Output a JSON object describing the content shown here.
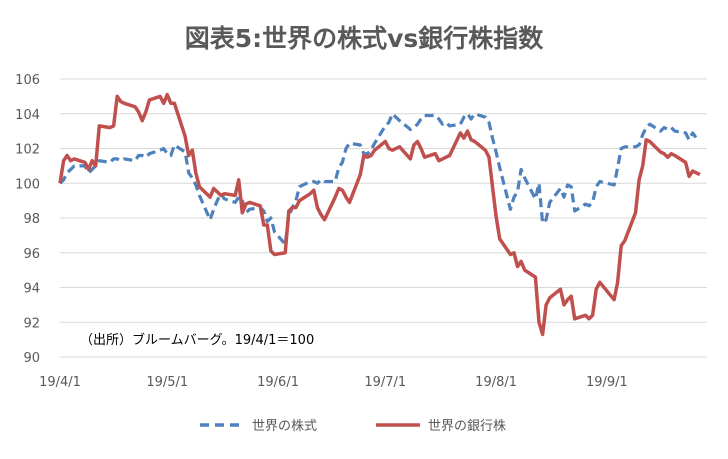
{
  "chart_data": {
    "type": "line",
    "title": "図表5:世界の株式vs銀行株指数",
    "xlabel": "",
    "ylabel": "",
    "ylim": [
      90,
      106
    ],
    "y_ticks": [
      "90",
      "92",
      "94",
      "96",
      "98",
      "100",
      "102",
      "104",
      "106"
    ],
    "x_ticks": [
      "19/4/1",
      "19/5/1",
      "19/6/1",
      "19/7/1",
      "19/8/1",
      "19/9/1"
    ],
    "grid": "horizontal",
    "legend_position": "bottom",
    "annotation": "（出所）ブルームバーグ。19/4/1＝100",
    "series": [
      {
        "name": "世界の株式",
        "style": "dashed",
        "color": "#4f81bd",
        "points": [
          [
            "2019-04-01",
            100.0
          ],
          [
            "2019-04-02",
            100.2
          ],
          [
            "2019-04-03",
            100.6
          ],
          [
            "2019-04-04",
            100.8
          ],
          [
            "2019-04-05",
            101.0
          ],
          [
            "2019-04-08",
            101.0
          ],
          [
            "2019-04-09",
            100.6
          ],
          [
            "2019-04-10",
            100.8
          ],
          [
            "2019-04-11",
            101.0
          ],
          [
            "2019-04-12",
            101.3
          ],
          [
            "2019-04-15",
            101.2
          ],
          [
            "2019-04-16",
            101.4
          ],
          [
            "2019-04-17",
            101.4
          ],
          [
            "2019-04-18",
            101.3
          ],
          [
            "2019-04-19",
            101.4
          ],
          [
            "2019-04-22",
            101.3
          ],
          [
            "2019-04-23",
            101.6
          ],
          [
            "2019-04-24",
            101.6
          ],
          [
            "2019-04-25",
            101.5
          ],
          [
            "2019-04-26",
            101.7
          ],
          [
            "2019-04-29",
            101.9
          ],
          [
            "2019-04-30",
            102.0
          ],
          [
            "2019-05-01",
            101.7
          ],
          [
            "2019-05-02",
            101.6
          ],
          [
            "2019-05-03",
            102.2
          ],
          [
            "2019-05-06",
            101.8
          ],
          [
            "2019-05-07",
            100.6
          ],
          [
            "2019-05-08",
            100.3
          ],
          [
            "2019-05-09",
            99.9
          ],
          [
            "2019-05-10",
            99.3
          ],
          [
            "2019-05-13",
            97.9
          ],
          [
            "2019-05-14",
            98.5
          ],
          [
            "2019-05-15",
            99.0
          ],
          [
            "2019-05-16",
            99.4
          ],
          [
            "2019-05-17",
            99.1
          ],
          [
            "2019-05-20",
            98.9
          ],
          [
            "2019-05-21",
            99.2
          ],
          [
            "2019-05-22",
            99.0
          ],
          [
            "2019-05-23",
            98.3
          ],
          [
            "2019-05-24",
            98.5
          ],
          [
            "2019-05-27",
            98.6
          ],
          [
            "2019-05-28",
            98.4
          ],
          [
            "2019-05-29",
            97.8
          ],
          [
            "2019-05-30",
            98.0
          ],
          [
            "2019-05-31",
            97.2
          ],
          [
            "2019-06-03",
            96.5
          ],
          [
            "2019-06-04",
            98.1
          ],
          [
            "2019-06-05",
            98.6
          ],
          [
            "2019-06-06",
            99.0
          ],
          [
            "2019-06-07",
            99.8
          ],
          [
            "2019-06-10",
            100.1
          ],
          [
            "2019-06-11",
            100.1
          ],
          [
            "2019-06-12",
            100.0
          ],
          [
            "2019-06-13",
            100.2
          ],
          [
            "2019-06-14",
            100.1
          ],
          [
            "2019-06-17",
            100.1
          ],
          [
            "2019-06-18",
            100.9
          ],
          [
            "2019-06-19",
            101.2
          ],
          [
            "2019-06-20",
            102.0
          ],
          [
            "2019-06-21",
            102.3
          ],
          [
            "2019-06-24",
            102.2
          ],
          [
            "2019-06-25",
            101.7
          ],
          [
            "2019-06-26",
            101.7
          ],
          [
            "2019-06-27",
            101.9
          ],
          [
            "2019-06-28",
            102.3
          ],
          [
            "2019-07-01",
            103.3
          ],
          [
            "2019-07-02",
            103.5
          ],
          [
            "2019-07-03",
            104.0
          ],
          [
            "2019-07-05",
            103.6
          ],
          [
            "2019-07-08",
            103.1
          ],
          [
            "2019-07-09",
            103.2
          ],
          [
            "2019-07-10",
            103.4
          ],
          [
            "2019-07-11",
            103.7
          ],
          [
            "2019-07-12",
            103.9
          ],
          [
            "2019-07-15",
            103.9
          ],
          [
            "2019-07-16",
            103.7
          ],
          [
            "2019-07-17",
            103.4
          ],
          [
            "2019-07-18",
            103.5
          ],
          [
            "2019-07-19",
            103.3
          ],
          [
            "2019-07-22",
            103.4
          ],
          [
            "2019-07-23",
            103.8
          ],
          [
            "2019-07-24",
            104.0
          ],
          [
            "2019-07-25",
            103.7
          ],
          [
            "2019-07-26",
            104.0
          ],
          [
            "2019-07-29",
            103.8
          ],
          [
            "2019-07-30",
            103.5
          ],
          [
            "2019-07-31",
            102.6
          ],
          [
            "2019-08-01",
            101.8
          ],
          [
            "2019-08-02",
            100.9
          ],
          [
            "2019-08-05",
            98.5
          ],
          [
            "2019-08-06",
            99.2
          ],
          [
            "2019-08-07",
            99.5
          ],
          [
            "2019-08-08",
            100.8
          ],
          [
            "2019-08-09",
            100.3
          ],
          [
            "2019-08-12",
            99.1
          ],
          [
            "2019-08-13",
            100.0
          ],
          [
            "2019-08-14",
            97.7
          ],
          [
            "2019-08-15",
            97.9
          ],
          [
            "2019-08-16",
            98.9
          ],
          [
            "2019-08-19",
            99.7
          ],
          [
            "2019-08-20",
            99.2
          ],
          [
            "2019-08-21",
            99.9
          ],
          [
            "2019-08-22",
            99.8
          ],
          [
            "2019-08-23",
            98.4
          ],
          [
            "2019-08-26",
            98.8
          ],
          [
            "2019-08-27",
            98.7
          ],
          [
            "2019-08-28",
            98.9
          ],
          [
            "2019-08-29",
            99.8
          ],
          [
            "2019-08-30",
            100.1
          ],
          [
            "2019-09-03",
            99.9
          ],
          [
            "2019-09-04",
            100.9
          ],
          [
            "2019-09-05",
            102.0
          ],
          [
            "2019-09-06",
            102.1
          ],
          [
            "2019-09-09",
            102.1
          ],
          [
            "2019-09-10",
            102.2
          ],
          [
            "2019-09-11",
            102.8
          ],
          [
            "2019-09-12",
            103.2
          ],
          [
            "2019-09-13",
            103.4
          ],
          [
            "2019-09-16",
            103.0
          ],
          [
            "2019-09-17",
            103.2
          ],
          [
            "2019-09-18",
            103.1
          ],
          [
            "2019-09-19",
            103.2
          ],
          [
            "2019-09-20",
            103.0
          ],
          [
            "2019-09-23",
            102.9
          ],
          [
            "2019-09-24",
            102.5
          ],
          [
            "2019-09-25",
            102.9
          ],
          [
            "2019-09-26",
            102.6
          ],
          [
            "2019-09-27",
            102.5
          ]
        ]
      },
      {
        "name": "世界の銀行株",
        "style": "solid",
        "color": "#c0504d",
        "points": [
          [
            "2019-04-01",
            100.0
          ],
          [
            "2019-04-02",
            101.3
          ],
          [
            "2019-04-03",
            101.6
          ],
          [
            "2019-04-04",
            101.3
          ],
          [
            "2019-04-05",
            101.4
          ],
          [
            "2019-04-08",
            101.2
          ],
          [
            "2019-04-09",
            100.8
          ],
          [
            "2019-04-10",
            101.3
          ],
          [
            "2019-04-11",
            101.0
          ],
          [
            "2019-04-12",
            103.3
          ],
          [
            "2019-04-15",
            103.2
          ],
          [
            "2019-04-16",
            103.3
          ],
          [
            "2019-04-17",
            105.0
          ],
          [
            "2019-04-18",
            104.7
          ],
          [
            "2019-04-19",
            104.6
          ],
          [
            "2019-04-22",
            104.4
          ],
          [
            "2019-04-23",
            104.1
          ],
          [
            "2019-04-24",
            103.6
          ],
          [
            "2019-04-25",
            104.1
          ],
          [
            "2019-04-26",
            104.8
          ],
          [
            "2019-04-29",
            105.0
          ],
          [
            "2019-04-30",
            104.6
          ],
          [
            "2019-05-01",
            105.1
          ],
          [
            "2019-05-02",
            104.6
          ],
          [
            "2019-05-03",
            104.6
          ],
          [
            "2019-05-06",
            102.7
          ],
          [
            "2019-05-07",
            101.6
          ],
          [
            "2019-05-08",
            101.9
          ],
          [
            "2019-05-09",
            100.6
          ],
          [
            "2019-05-10",
            99.8
          ],
          [
            "2019-05-13",
            99.2
          ],
          [
            "2019-05-14",
            99.7
          ],
          [
            "2019-05-15",
            99.5
          ],
          [
            "2019-05-16",
            99.3
          ],
          [
            "2019-05-17",
            99.4
          ],
          [
            "2019-05-20",
            99.3
          ],
          [
            "2019-05-21",
            100.2
          ],
          [
            "2019-05-22",
            98.3
          ],
          [
            "2019-05-23",
            98.8
          ],
          [
            "2019-05-24",
            98.9
          ],
          [
            "2019-05-27",
            98.7
          ],
          [
            "2019-05-28",
            97.6
          ],
          [
            "2019-05-29",
            97.6
          ],
          [
            "2019-05-30",
            96.1
          ],
          [
            "2019-05-31",
            95.9
          ],
          [
            "2019-06-03",
            96.0
          ],
          [
            "2019-06-04",
            98.4
          ],
          [
            "2019-06-05",
            98.6
          ],
          [
            "2019-06-06",
            98.6
          ],
          [
            "2019-06-07",
            99.0
          ],
          [
            "2019-06-10",
            99.4
          ],
          [
            "2019-06-11",
            99.6
          ],
          [
            "2019-06-12",
            98.6
          ],
          [
            "2019-06-13",
            98.2
          ],
          [
            "2019-06-14",
            97.9
          ],
          [
            "2019-06-17",
            99.2
          ],
          [
            "2019-06-18",
            99.7
          ],
          [
            "2019-06-19",
            99.6
          ],
          [
            "2019-06-20",
            99.2
          ],
          [
            "2019-06-21",
            98.9
          ],
          [
            "2019-06-24",
            100.5
          ],
          [
            "2019-06-25",
            101.6
          ],
          [
            "2019-06-26",
            101.5
          ],
          [
            "2019-06-27",
            101.6
          ],
          [
            "2019-06-28",
            101.9
          ],
          [
            "2019-07-01",
            102.4
          ],
          [
            "2019-07-02",
            102.0
          ],
          [
            "2019-07-03",
            101.9
          ],
          [
            "2019-07-05",
            102.1
          ],
          [
            "2019-07-08",
            101.4
          ],
          [
            "2019-07-09",
            102.2
          ],
          [
            "2019-07-10",
            102.4
          ],
          [
            "2019-07-11",
            102.0
          ],
          [
            "2019-07-12",
            101.5
          ],
          [
            "2019-07-15",
            101.7
          ],
          [
            "2019-07-16",
            101.3
          ],
          [
            "2019-07-17",
            101.4
          ],
          [
            "2019-07-18",
            101.5
          ],
          [
            "2019-07-19",
            101.6
          ],
          [
            "2019-07-22",
            102.9
          ],
          [
            "2019-07-23",
            102.6
          ],
          [
            "2019-07-24",
            103.0
          ],
          [
            "2019-07-25",
            102.5
          ],
          [
            "2019-07-26",
            102.4
          ],
          [
            "2019-07-29",
            101.9
          ],
          [
            "2019-07-30",
            101.5
          ],
          [
            "2019-07-31",
            99.8
          ],
          [
            "2019-08-01",
            98.1
          ],
          [
            "2019-08-02",
            96.8
          ],
          [
            "2019-08-05",
            95.9
          ],
          [
            "2019-08-06",
            96.0
          ],
          [
            "2019-08-07",
            95.2
          ],
          [
            "2019-08-08",
            95.5
          ],
          [
            "2019-08-09",
            95.0
          ],
          [
            "2019-08-12",
            94.6
          ],
          [
            "2019-08-13",
            92.0
          ],
          [
            "2019-08-14",
            91.3
          ],
          [
            "2019-08-15",
            93.0
          ],
          [
            "2019-08-16",
            93.4
          ],
          [
            "2019-08-19",
            93.9
          ],
          [
            "2019-08-20",
            93.0
          ],
          [
            "2019-08-21",
            93.3
          ],
          [
            "2019-08-22",
            93.5
          ],
          [
            "2019-08-23",
            92.2
          ],
          [
            "2019-08-26",
            92.4
          ],
          [
            "2019-08-27",
            92.2
          ],
          [
            "2019-08-28",
            92.4
          ],
          [
            "2019-08-29",
            93.9
          ],
          [
            "2019-08-30",
            94.3
          ],
          [
            "2019-09-03",
            93.3
          ],
          [
            "2019-09-04",
            94.3
          ],
          [
            "2019-09-05",
            96.4
          ],
          [
            "2019-09-06",
            96.7
          ],
          [
            "2019-09-09",
            98.3
          ],
          [
            "2019-09-10",
            100.2
          ],
          [
            "2019-09-11",
            101.0
          ],
          [
            "2019-09-12",
            102.5
          ],
          [
            "2019-09-13",
            102.4
          ],
          [
            "2019-09-16",
            101.8
          ],
          [
            "2019-09-17",
            101.7
          ],
          [
            "2019-09-18",
            101.5
          ],
          [
            "2019-09-19",
            101.7
          ],
          [
            "2019-09-20",
            101.6
          ],
          [
            "2019-09-23",
            101.2
          ],
          [
            "2019-09-24",
            100.4
          ],
          [
            "2019-09-25",
            100.7
          ],
          [
            "2019-09-26",
            100.6
          ],
          [
            "2019-09-27",
            100.5
          ]
        ]
      }
    ]
  }
}
